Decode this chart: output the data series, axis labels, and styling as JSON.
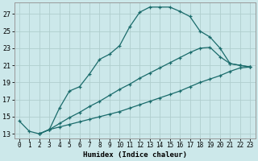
{
  "xlabel": "Humidex (Indice chaleur)",
  "background_color": "#cce8ea",
  "grid_color": "#b0cece",
  "line_color": "#1a6b6b",
  "xlim": [
    -0.5,
    23.5
  ],
  "ylim": [
    12.5,
    28.3
  ],
  "xticks": [
    0,
    1,
    2,
    3,
    4,
    5,
    6,
    7,
    8,
    9,
    10,
    11,
    12,
    13,
    14,
    15,
    16,
    17,
    18,
    19,
    20,
    21,
    22,
    23
  ],
  "yticks": [
    13,
    15,
    17,
    19,
    21,
    23,
    25,
    27
  ],
  "line1_x": [
    0,
    1,
    2,
    3,
    4,
    5,
    6,
    7,
    8,
    9,
    10,
    11,
    12,
    13,
    14,
    15,
    16,
    17,
    18,
    19,
    20,
    21,
    22,
    23
  ],
  "line1_y": [
    14.5,
    13.3,
    13.0,
    13.5,
    16.0,
    18.0,
    18.5,
    20.0,
    21.7,
    22.3,
    23.3,
    25.5,
    27.2,
    27.8,
    27.8,
    27.8,
    27.3,
    26.7,
    25.0,
    24.3,
    23.0,
    21.2,
    21.0,
    20.8
  ],
  "line2_x": [
    2,
    3,
    4,
    5,
    6,
    7,
    8,
    9,
    10,
    11,
    12,
    13,
    14,
    15,
    16,
    17,
    18,
    19,
    20,
    21,
    22,
    23
  ],
  "line2_y": [
    13.0,
    13.5,
    13.8,
    14.1,
    14.4,
    14.7,
    15.0,
    15.3,
    15.6,
    16.0,
    16.4,
    16.8,
    17.2,
    17.6,
    18.0,
    18.5,
    19.0,
    19.4,
    19.8,
    20.3,
    20.7,
    20.8
  ],
  "line3_x": [
    2,
    3,
    4,
    5,
    6,
    7,
    8,
    9,
    10,
    11,
    12,
    13,
    14,
    15,
    16,
    17,
    18,
    19,
    20,
    21,
    22,
    23
  ],
  "line3_y": [
    13.0,
    13.5,
    14.2,
    14.9,
    15.5,
    16.2,
    16.8,
    17.5,
    18.2,
    18.8,
    19.5,
    20.1,
    20.7,
    21.3,
    21.9,
    22.5,
    23.0,
    23.1,
    22.0,
    21.2,
    21.0,
    20.8
  ]
}
